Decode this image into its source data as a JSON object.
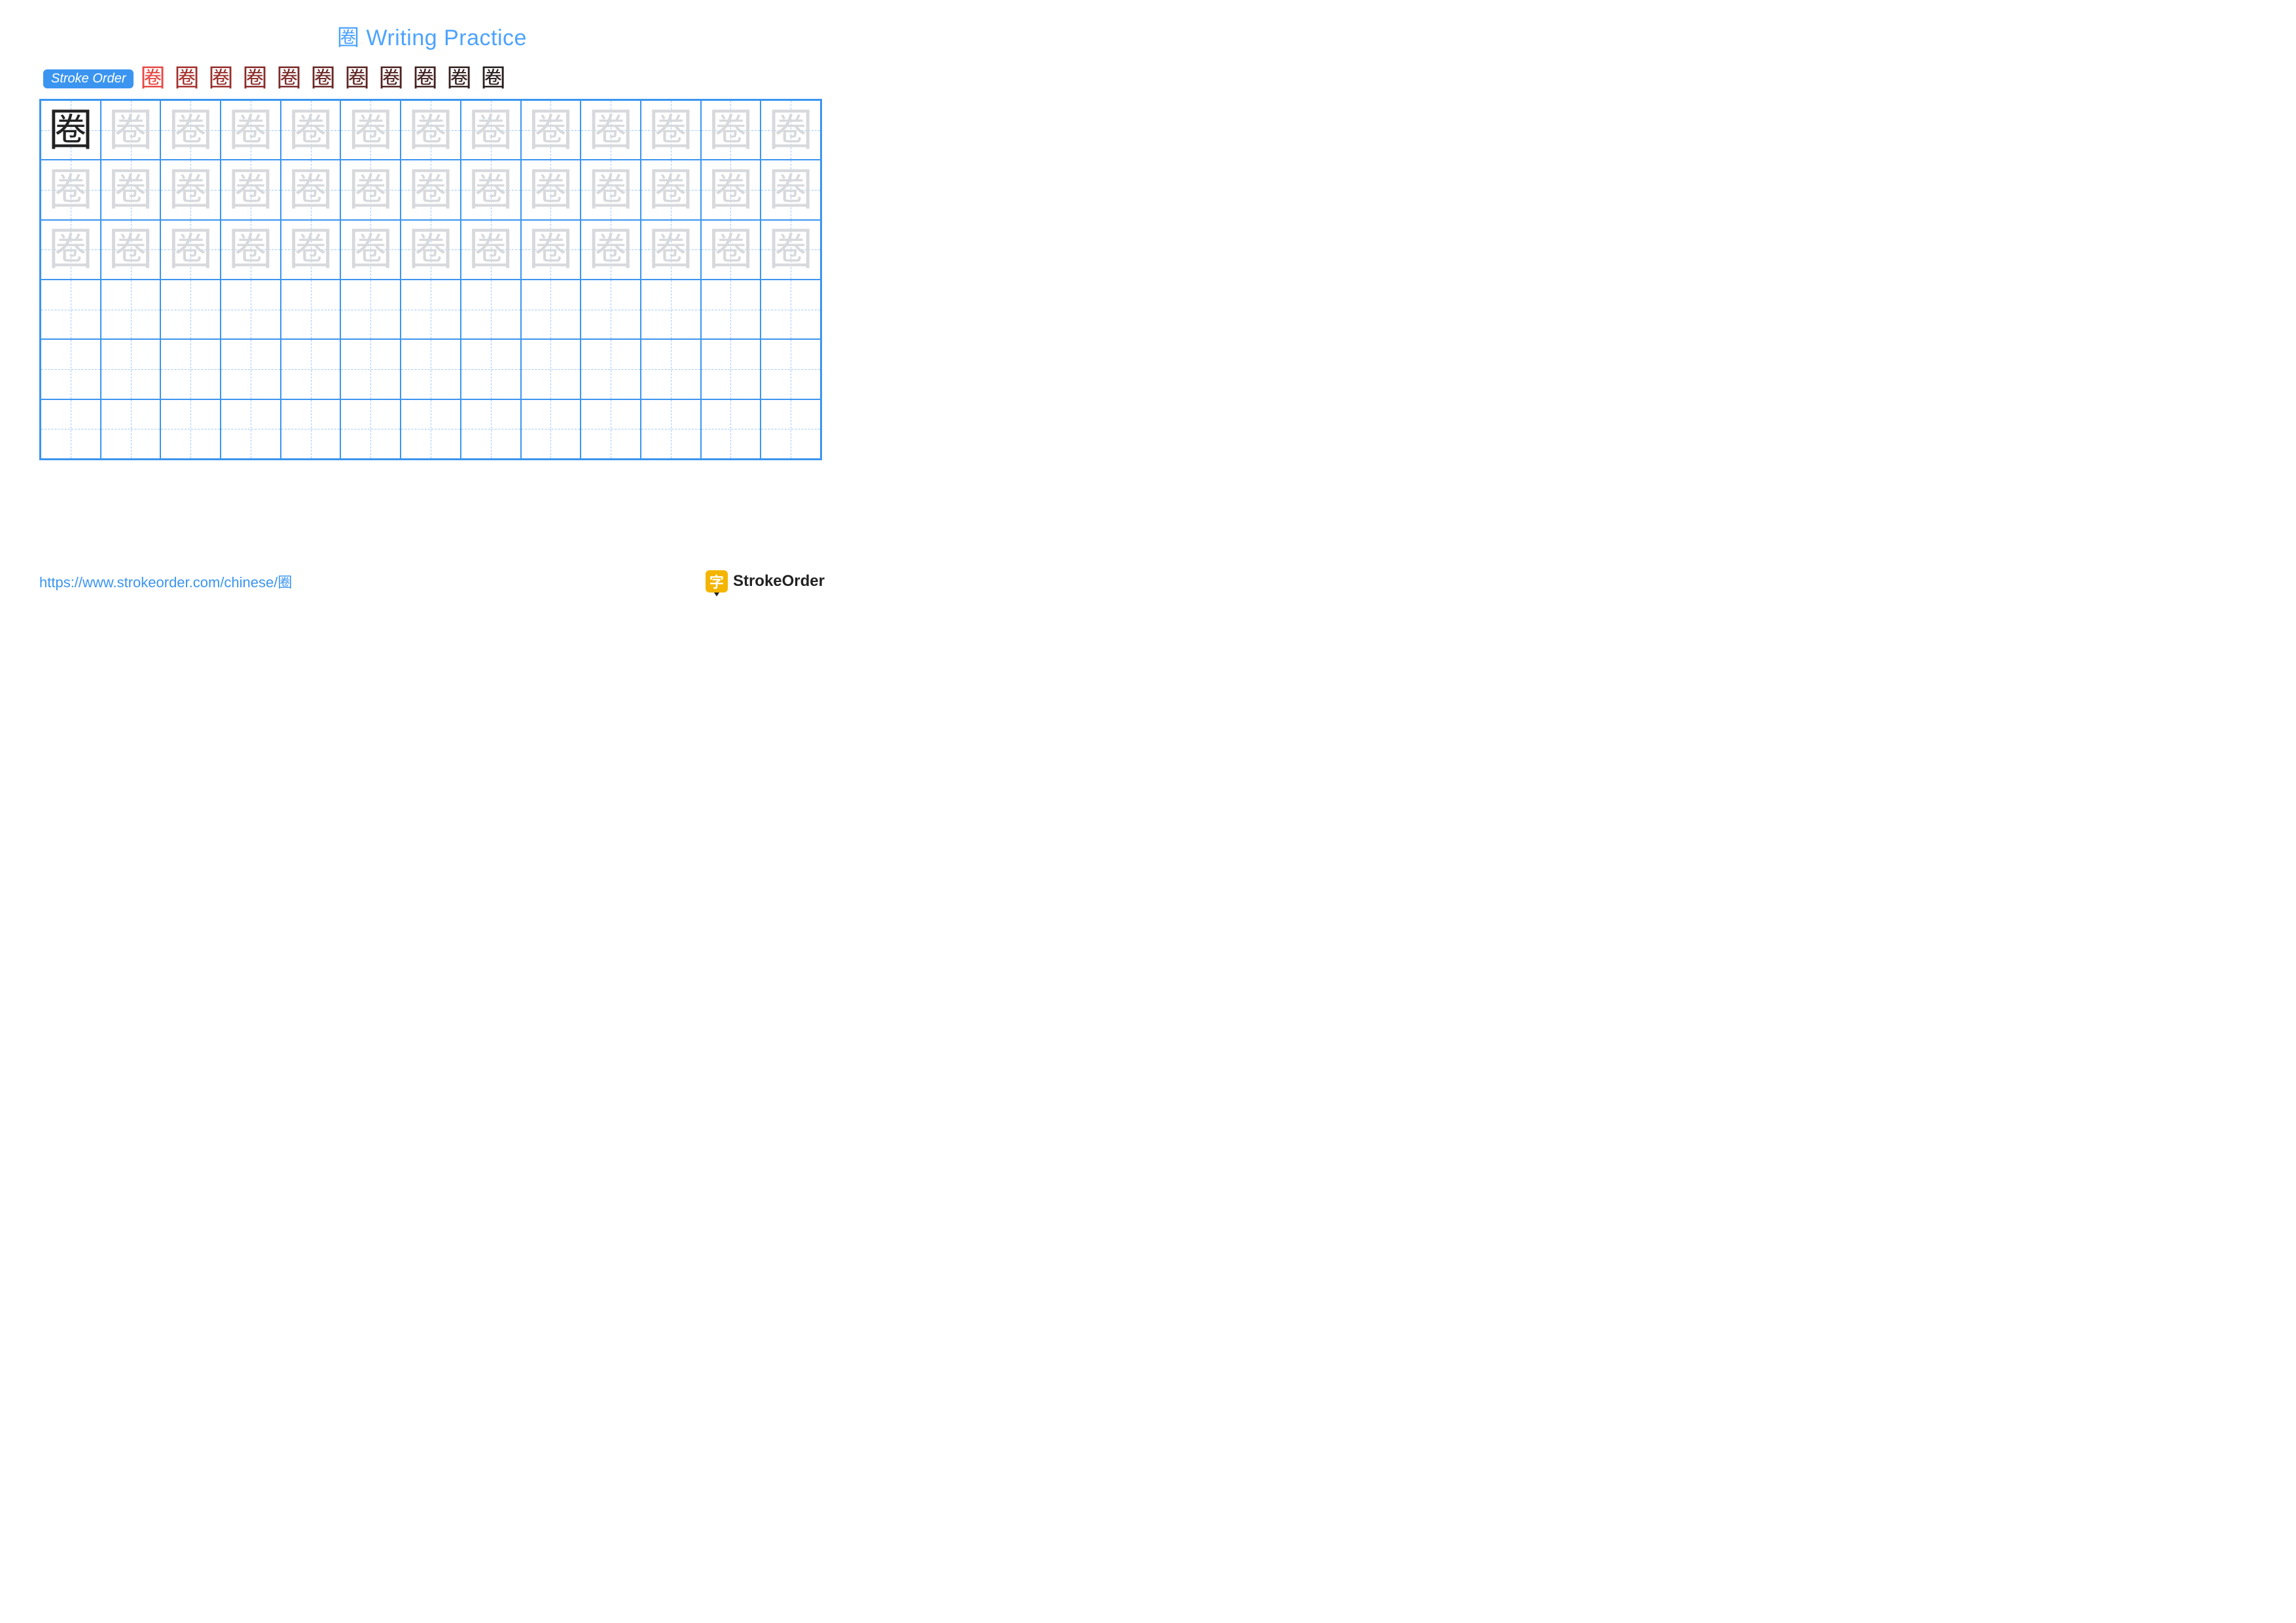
{
  "title": "圈 Writing Practice",
  "title_color": "#4da3ff",
  "stroke_badge": {
    "label": "Stroke Order",
    "bg": "#3b95f0",
    "color": "#ffffff"
  },
  "stroke_steps": {
    "count": 11,
    "char": "圈",
    "base_color": "#222222",
    "highlight_color": "#e53935"
  },
  "grid": {
    "cols": 13,
    "rows": 6,
    "border_color": "#3b95f0",
    "guide_color": "#9fc9f5",
    "char": "圈",
    "main_color": "#222222",
    "trace_color": "#d7d9dc",
    "trace_rows": 3
  },
  "footer": {
    "url": "https://www.strokeorder.com/chinese/圈",
    "url_color": "#3b95f0",
    "logo_icon_bg": "#f4b500",
    "logo_icon_char": "字",
    "logo_text": "StrokeOrder",
    "logo_text_color": "#222222"
  }
}
